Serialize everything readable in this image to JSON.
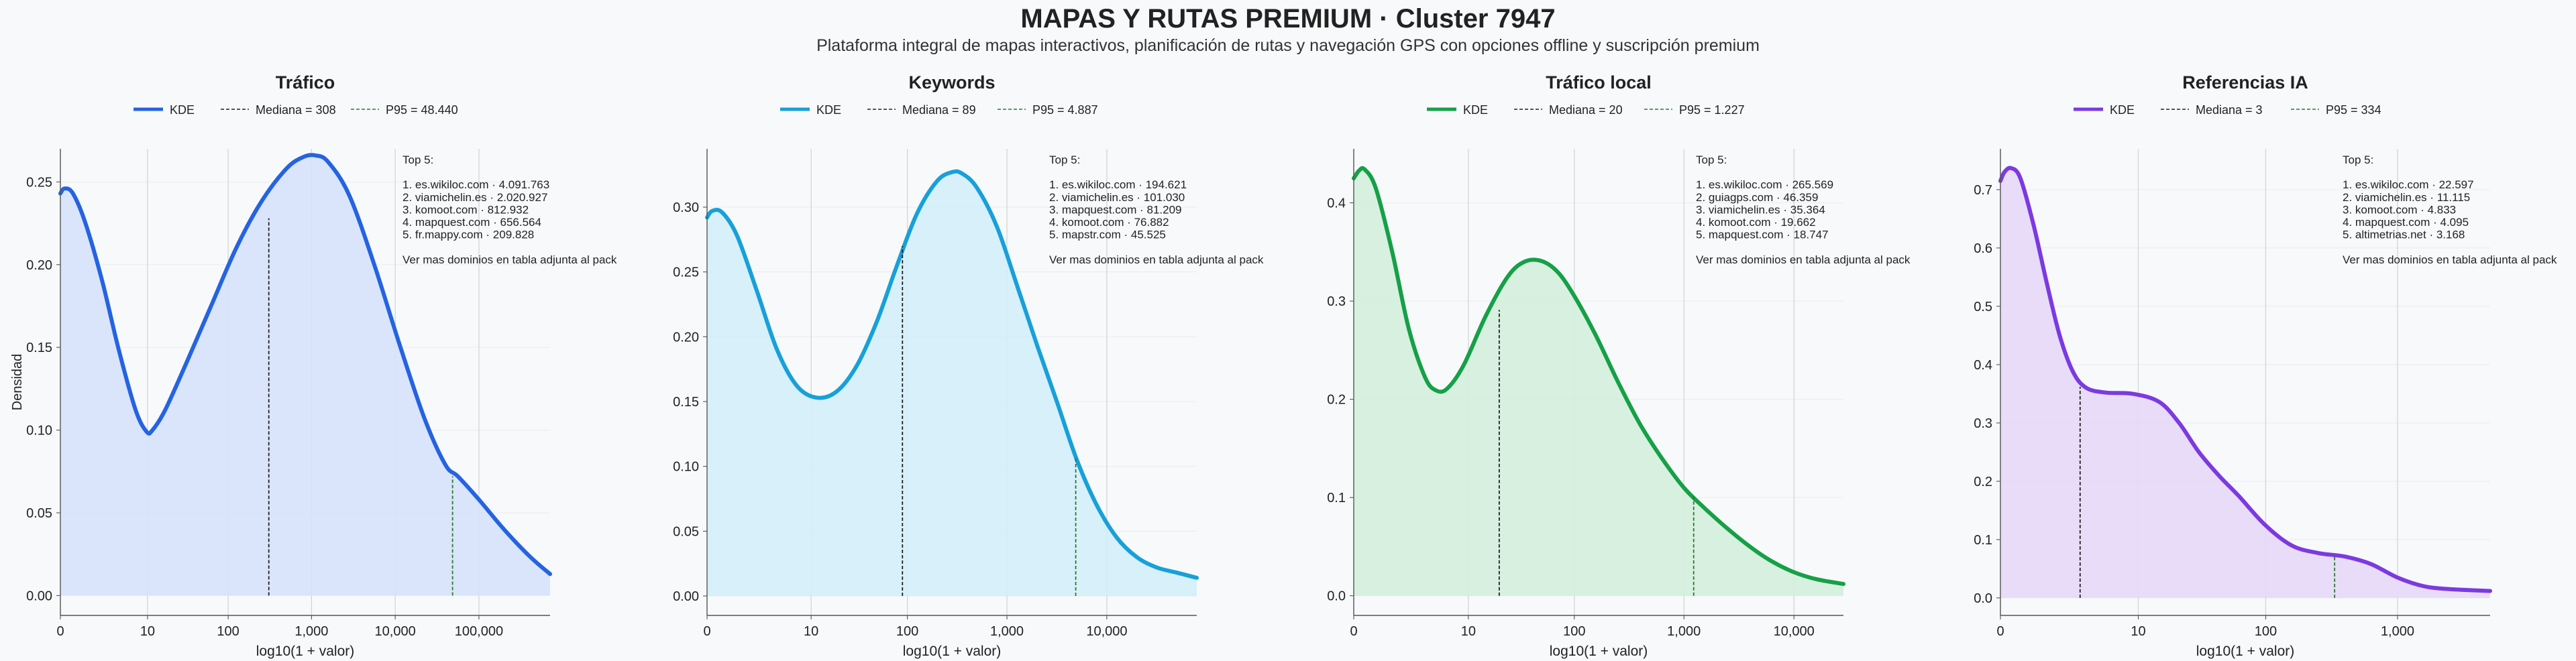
{
  "title": "MAPAS Y RUTAS PREMIUM · Cluster 7947",
  "subtitle": "Plataforma integral de mapas interactivos, planificación de rutas y navegación GPS con opciones offline y suscripción premium",
  "ylabel": "Densidad",
  "colors": {
    "median_line": "#222222",
    "p95_line": "#2a7a2a",
    "grid": "#cccccc",
    "background": "#f7f9fb"
  },
  "chart_data": [
    {
      "type": "area",
      "title": "Tráfico",
      "color": "#2563e0",
      "fill": "#d6e2fb",
      "xlabel": "log10(1 + valor)",
      "xlim": [
        0,
        5.85
      ],
      "ylim": [
        -0.012,
        0.27
      ],
      "xticks": [
        {
          "x": 0,
          "label": "0"
        },
        {
          "x": 1.0414,
          "label": "10"
        },
        {
          "x": 2.0043,
          "label": "100"
        },
        {
          "x": 3.0004,
          "label": "1,000"
        },
        {
          "x": 4.0,
          "label": "10,000"
        },
        {
          "x": 5.0,
          "label": "100,000"
        }
      ],
      "yticks": [
        {
          "y": 0,
          "label": "0.00"
        },
        {
          "y": 0.05,
          "label": "0.05"
        },
        {
          "y": 0.1,
          "label": "0.10"
        },
        {
          "y": 0.15,
          "label": "0.15"
        },
        {
          "y": 0.2,
          "label": "0.20"
        },
        {
          "y": 0.25,
          "label": "0.25"
        }
      ],
      "legend": {
        "kde": "KDE",
        "median": "Mediana = 308",
        "p95": "P95 = 48.440"
      },
      "median": {
        "x": 2.49,
        "y": 0.228
      },
      "p95": {
        "x": 4.685,
        "y": 0.072
      },
      "x": [
        0,
        0.05,
        0.15,
        0.3,
        0.5,
        0.7,
        0.9,
        1.03,
        1.1,
        1.25,
        1.5,
        1.8,
        2.1,
        2.4,
        2.7,
        2.9,
        3.05,
        3.2,
        3.45,
        3.75,
        4.05,
        4.35,
        4.6,
        4.75,
        5.0,
        5.3,
        5.6,
        5.85
      ],
      "y": [
        0.243,
        0.246,
        0.243,
        0.225,
        0.19,
        0.148,
        0.112,
        0.099,
        0.1,
        0.112,
        0.14,
        0.175,
        0.21,
        0.238,
        0.258,
        0.265,
        0.266,
        0.262,
        0.242,
        0.2,
        0.152,
        0.107,
        0.079,
        0.072,
        0.058,
        0.04,
        0.024,
        0.013
      ],
      "annotation": [
        "Top 5:",
        "",
        "1. es.wikiloc.com · 4.091.763",
        "2. viamichelin.es · 2.020.927",
        "3. komoot.com · 812.932",
        "4. mapquest.com · 656.564",
        "5. fr.mappy.com · 209.828",
        "",
        "Ver mas dominios en tabla adjunta al pack"
      ]
    },
    {
      "type": "area",
      "title": "Keywords",
      "color": "#18a0d8",
      "fill": "#d3eefa",
      "xlabel": "log10(1 + valor)",
      "xlim": [
        0,
        4.9
      ],
      "ylim": [
        -0.015,
        0.345
      ],
      "xticks": [
        {
          "x": 0,
          "label": "0"
        },
        {
          "x": 1.0414,
          "label": "10"
        },
        {
          "x": 2.0043,
          "label": "100"
        },
        {
          "x": 3.0004,
          "label": "1,000"
        },
        {
          "x": 4.0,
          "label": "10,000"
        }
      ],
      "yticks": [
        {
          "y": 0,
          "label": "0.00"
        },
        {
          "y": 0.05,
          "label": "0.05"
        },
        {
          "y": 0.1,
          "label": "0.10"
        },
        {
          "y": 0.15,
          "label": "0.15"
        },
        {
          "y": 0.2,
          "label": "0.20"
        },
        {
          "y": 0.25,
          "label": "0.25"
        },
        {
          "y": 0.3,
          "label": "0.30"
        }
      ],
      "legend": {
        "kde": "KDE",
        "median": "Mediana = 89",
        "p95": "P95 = 4.887"
      },
      "median": {
        "x": 1.955,
        "y": 0.27
      },
      "p95": {
        "x": 3.689,
        "y": 0.107
      },
      "x": [
        0,
        0.05,
        0.15,
        0.3,
        0.5,
        0.7,
        0.9,
        1.1,
        1.3,
        1.5,
        1.7,
        1.9,
        2.1,
        2.3,
        2.45,
        2.55,
        2.7,
        2.9,
        3.1,
        3.3,
        3.5,
        3.7,
        3.9,
        4.1,
        4.3,
        4.5,
        4.7,
        4.9
      ],
      "y": [
        0.292,
        0.297,
        0.296,
        0.278,
        0.235,
        0.19,
        0.162,
        0.153,
        0.158,
        0.178,
        0.212,
        0.255,
        0.295,
        0.32,
        0.327,
        0.326,
        0.315,
        0.285,
        0.24,
        0.194,
        0.15,
        0.105,
        0.07,
        0.045,
        0.03,
        0.022,
        0.018,
        0.014
      ],
      "annotation": [
        "Top 5:",
        "",
        "1. es.wikiloc.com · 194.621",
        "2. viamichelin.es · 101.030",
        "3. mapquest.com · 81.209",
        "4. komoot.com · 76.882",
        "5. mapstr.com · 45.525",
        "",
        "Ver mas dominios en tabla adjunta al pack"
      ]
    },
    {
      "type": "area",
      "title": "Tráfico local",
      "color": "#16a047",
      "fill": "#d3eedc",
      "xlabel": "log10(1 + valor)",
      "xlim": [
        0,
        4.45
      ],
      "ylim": [
        -0.02,
        0.455
      ],
      "xticks": [
        {
          "x": 0,
          "label": "0"
        },
        {
          "x": 1.0414,
          "label": "10"
        },
        {
          "x": 2.0043,
          "label": "100"
        },
        {
          "x": 3.0004,
          "label": "1,000"
        },
        {
          "x": 4.0,
          "label": "10,000"
        }
      ],
      "yticks": [
        {
          "y": 0,
          "label": "0.0"
        },
        {
          "y": 0.1,
          "label": "0.1"
        },
        {
          "y": 0.2,
          "label": "0.2"
        },
        {
          "y": 0.3,
          "label": "0.3"
        },
        {
          "y": 0.4,
          "label": "0.4"
        }
      ],
      "legend": {
        "kde": "KDE",
        "median": "Mediana = 20",
        "p95": "P95 = 1.227"
      },
      "median": {
        "x": 1.322,
        "y": 0.291
      },
      "p95": {
        "x": 3.089,
        "y": 0.103
      },
      "x": [
        0,
        0.05,
        0.1,
        0.2,
        0.35,
        0.5,
        0.65,
        0.75,
        0.85,
        1.0,
        1.2,
        1.4,
        1.55,
        1.7,
        1.85,
        2.0,
        2.2,
        2.4,
        2.6,
        2.8,
        3.0,
        3.2,
        3.4,
        3.6,
        3.8,
        4.0,
        4.2,
        4.45
      ],
      "y": [
        0.425,
        0.433,
        0.434,
        0.415,
        0.35,
        0.272,
        0.222,
        0.209,
        0.211,
        0.235,
        0.285,
        0.325,
        0.34,
        0.341,
        0.33,
        0.306,
        0.265,
        0.218,
        0.175,
        0.14,
        0.11,
        0.088,
        0.068,
        0.05,
        0.035,
        0.024,
        0.017,
        0.012
      ],
      "annotation": [
        "Top 5:",
        "",
        "1. es.wikiloc.com · 265.569",
        "2. guiagps.com · 46.359",
        "3. viamichelin.es · 35.364",
        "4. komoot.com · 19.662",
        "5. mapquest.com · 18.747",
        "",
        "Ver mas dominios en tabla adjunta al pack"
      ]
    },
    {
      "type": "area",
      "title": "Referencias IA",
      "color": "#7c3ae0",
      "fill": "#e6d8f8",
      "xlabel": "log10(1 + valor)",
      "xlim": [
        0,
        3.7
      ],
      "ylim": [
        -0.03,
        0.77
      ],
      "xticks": [
        {
          "x": 0,
          "label": "0"
        },
        {
          "x": 1.0414,
          "label": "10"
        },
        {
          "x": 2.0043,
          "label": "100"
        },
        {
          "x": 3.0004,
          "label": "1,000"
        }
      ],
      "yticks": [
        {
          "y": 0,
          "label": "0.0"
        },
        {
          "y": 0.1,
          "label": "0.1"
        },
        {
          "y": 0.2,
          "label": "0.2"
        },
        {
          "y": 0.3,
          "label": "0.3"
        },
        {
          "y": 0.4,
          "label": "0.4"
        },
        {
          "y": 0.5,
          "label": "0.5"
        },
        {
          "y": 0.6,
          "label": "0.6"
        },
        {
          "y": 0.7,
          "label": "0.7"
        }
      ],
      "legend": {
        "kde": "KDE",
        "median": "Mediana = 3",
        "p95": "P95 = 334"
      },
      "median": {
        "x": 0.602,
        "y": 0.362
      },
      "p95": {
        "x": 2.525,
        "y": 0.074
      },
      "x": [
        0,
        0.03,
        0.08,
        0.15,
        0.25,
        0.35,
        0.45,
        0.55,
        0.65,
        0.8,
        1.0,
        1.2,
        1.35,
        1.5,
        1.65,
        1.8,
        2.0,
        2.2,
        2.4,
        2.6,
        2.8,
        3.0,
        3.2,
        3.4,
        3.7
      ],
      "y": [
        0.715,
        0.73,
        0.737,
        0.72,
        0.64,
        0.54,
        0.448,
        0.387,
        0.36,
        0.352,
        0.35,
        0.336,
        0.3,
        0.25,
        0.21,
        0.175,
        0.125,
        0.09,
        0.077,
        0.071,
        0.058,
        0.035,
        0.02,
        0.015,
        0.012
      ],
      "annotation": [
        "Top 5:",
        "",
        "1. es.wikiloc.com · 22.597",
        "2. viamichelin.es · 11.115",
        "3. komoot.com · 4.833",
        "4. mapquest.com · 4.095",
        "5. altimetrias.net · 3.168",
        "",
        "Ver mas dominios en tabla adjunta al pack"
      ]
    }
  ]
}
